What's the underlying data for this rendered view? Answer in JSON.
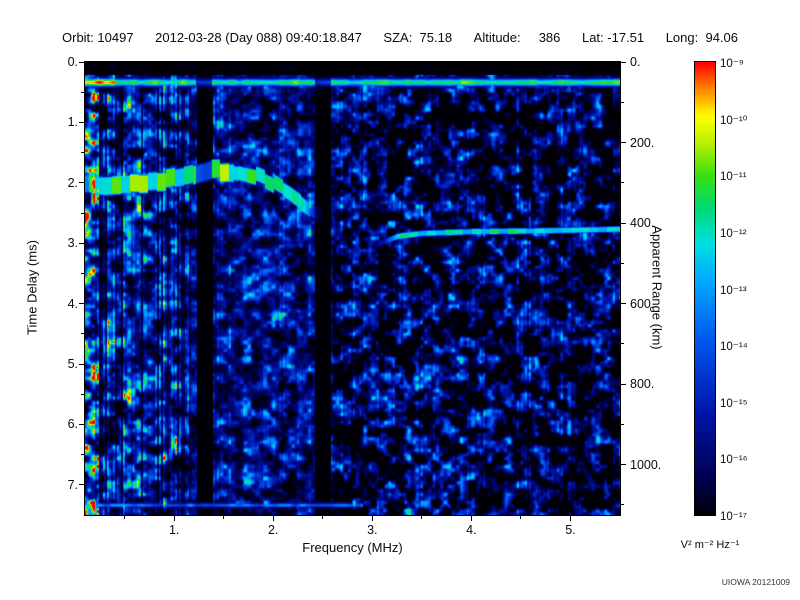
{
  "header": {
    "items": [
      "Orbit: 10497",
      "2012-03-28 (Day 088) 09:40:18.847",
      "SZA:  75.18",
      "Altitude:     386",
      "Lat: -17.51",
      "Long:  94.06"
    ]
  },
  "chart_data": {
    "type": "heatmap",
    "xlabel": "Frequency (MHz)",
    "x_range_mhz": [
      0.1,
      5.5
    ],
    "x_ticks": [
      1,
      2,
      3,
      4,
      5
    ],
    "x_tick_labels": [
      "1.",
      "2.",
      "3.",
      "4.",
      "5."
    ],
    "x_minor_tick_step": 0.5,
    "ylabel": "Time Delay (ms)",
    "y_range_ms": [
      0,
      7.5
    ],
    "y_ticks": [
      0,
      1,
      2,
      3,
      4,
      5,
      6,
      7
    ],
    "y_tick_labels": [
      "0.",
      "1.",
      "2.",
      "3.",
      "4.",
      "5.",
      "6.",
      "7."
    ],
    "y_minor_tick_step": 0.5,
    "y2_label": "Apparent Range (km)",
    "y2_ticks_km": [
      0,
      200,
      400,
      600,
      800,
      1000
    ],
    "y2_tick_labels": [
      "0.",
      "200.",
      "400.",
      "600.",
      "800.",
      "1000."
    ],
    "y2_minor_tick_step_km": 100,
    "km_per_ms": 150,
    "colorbar": {
      "tick_labels": [
        "10⁻⁹",
        "10⁻¹⁰",
        "10⁻¹¹",
        "10⁻¹²",
        "10⁻¹³",
        "10⁻¹⁴",
        "10⁻¹⁵",
        "10⁻¹⁶",
        "10⁻¹⁷"
      ],
      "units_label": "V² m⁻² Hz⁻¹",
      "colormap_stops": [
        [
          0.0,
          "#000006"
        ],
        [
          0.08,
          "#000050"
        ],
        [
          0.22,
          "#0013a8"
        ],
        [
          0.38,
          "#0055ee"
        ],
        [
          0.52,
          "#00aaff"
        ],
        [
          0.6,
          "#00e0e0"
        ],
        [
          0.68,
          "#00d870"
        ],
        [
          0.75,
          "#3ae010"
        ],
        [
          0.82,
          "#b8ee00"
        ],
        [
          0.88,
          "#ffff00"
        ],
        [
          0.94,
          "#ff8800"
        ],
        [
          1.0,
          "#ff0000"
        ]
      ]
    },
    "features": {
      "first_return_line": {
        "delay_ms": 0.33,
        "freq_span_mhz": [
          0.1,
          5.5
        ],
        "peak": 0.8
      },
      "ionospheric_echo_trace_points": [
        [
          0.1,
          2.05
        ],
        [
          0.5,
          2.0
        ],
        [
          0.9,
          1.97
        ],
        [
          1.15,
          1.9
        ],
        [
          1.35,
          1.8
        ],
        [
          1.6,
          1.78
        ],
        [
          1.85,
          1.88
        ],
        [
          2.0,
          2.0
        ],
        [
          2.15,
          2.15
        ],
        [
          2.3,
          2.32
        ],
        [
          2.45,
          2.5
        ]
      ],
      "ionospheric_trace_peak": 0.88,
      "ground_echo_trace_points": [
        [
          3.1,
          2.98
        ],
        [
          3.25,
          2.88
        ],
        [
          3.5,
          2.83
        ],
        [
          4.0,
          2.8
        ],
        [
          4.6,
          2.79
        ],
        [
          5.5,
          2.76
        ]
      ],
      "ground_trace_peak": 0.62,
      "noise_band_freq_span_mhz": [
        0.1,
        1.15
      ],
      "dark_gap_freq_spans_mhz": [
        [
          1.22,
          1.38
        ],
        [
          2.42,
          2.58
        ]
      ],
      "bottom_edge_line": {
        "delay_ms": 7.33,
        "freq_span_mhz": [
          0.1,
          2.9
        ],
        "peak": 0.55
      },
      "background_noise_level": 0.45
    },
    "credit": "UIOWA 20121009"
  }
}
